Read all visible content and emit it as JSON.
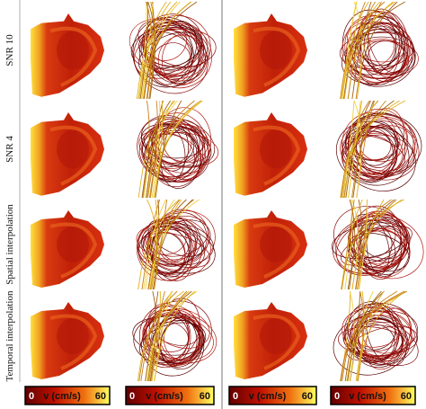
{
  "rows": [
    {
      "label": "SNR 10"
    },
    {
      "label": "SNR 4"
    },
    {
      "label": "Spatial interpolation"
    },
    {
      "label": "Temporal interpolation"
    }
  ],
  "colorbars": [
    {
      "min": 0,
      "label": "v (cm/s)",
      "max": 60
    },
    {
      "min": 0,
      "label": "v (cm/s)",
      "max": 60
    },
    {
      "min": 0,
      "label": "v (cm/s)",
      "max": 60
    },
    {
      "min": 0,
      "label": "v (cm/s)",
      "max": 60
    }
  ]
}
